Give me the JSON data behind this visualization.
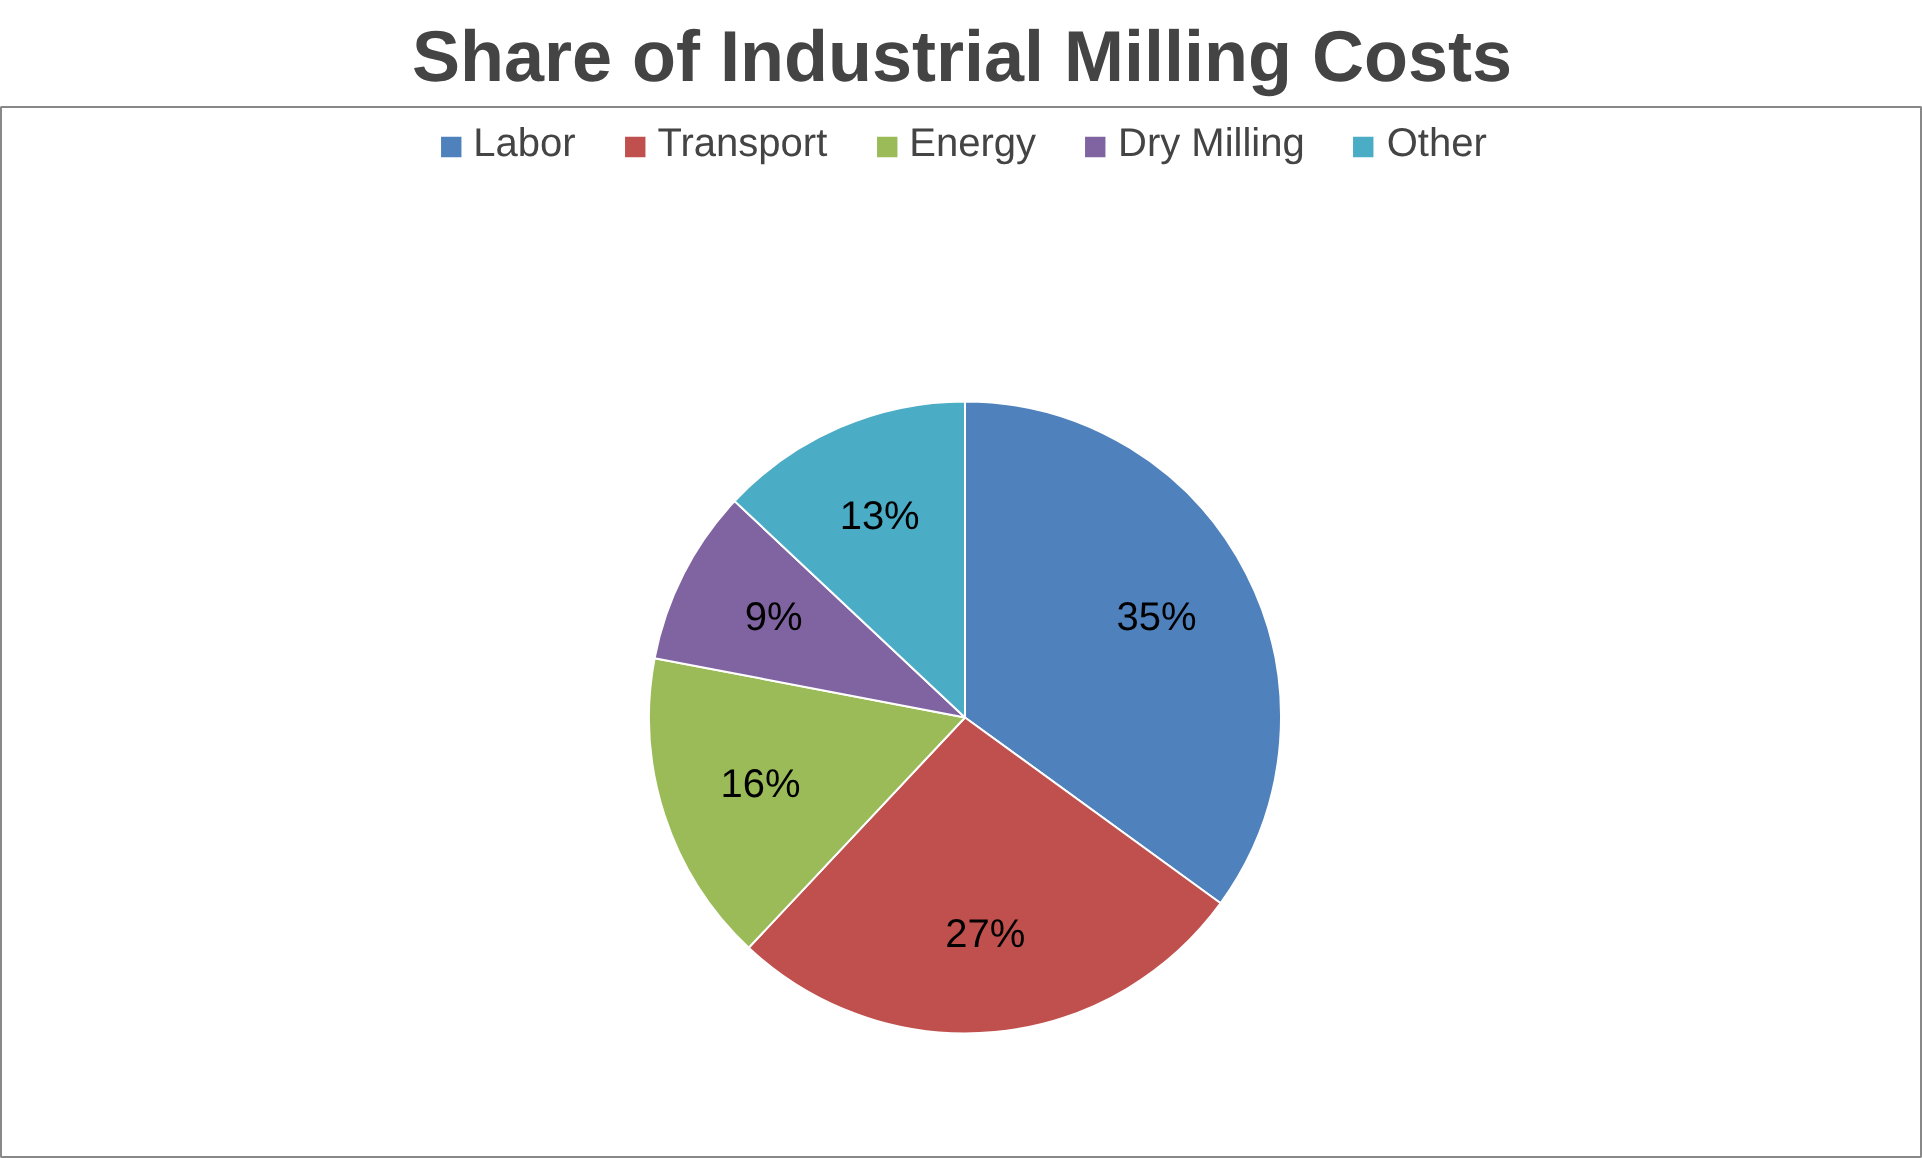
{
  "chart_data": {
    "type": "pie",
    "title": "Share of Industrial Milling Costs",
    "categories": [
      "Labor",
      "Transport",
      "Energy",
      "Dry Milling",
      "Other"
    ],
    "values": [
      35,
      27,
      16,
      9,
      13
    ],
    "colors": [
      "#4f81bd",
      "#c0504d",
      "#9bbb59",
      "#8064a2",
      "#4bacc6"
    ],
    "value_labels": [
      "35%",
      "27%",
      "16%",
      "9%",
      "13%"
    ],
    "legend": "top"
  }
}
